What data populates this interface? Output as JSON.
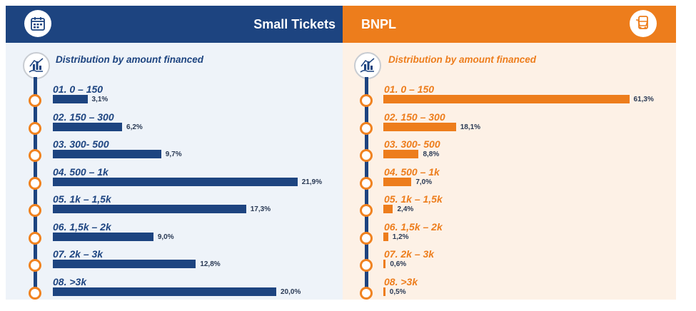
{
  "panels": {
    "left": {
      "header_title": "Small Tickets",
      "subtitle": "Distribution by amount financed",
      "header_icon": "calendar-icon",
      "subtitle_icon": "hand-chart-icon",
      "color": "#1d4480"
    },
    "right": {
      "header_title": "BNPL",
      "subtitle": "Distribution by amount financed",
      "header_icon": "shopping-cart-icon",
      "subtitle_icon": "hand-chart-icon",
      "color": "#ed7d1c"
    }
  },
  "chart_data": [
    {
      "type": "bar",
      "title": "Small Tickets",
      "subtitle": "Distribution by amount financed",
      "categories": [
        "01. 0 – 150",
        "02. 150 – 300",
        "03. 300- 500",
        "04. 500 – 1k",
        "05. 1k – 1,5k",
        "06. 1,5k – 2k",
        "07. 2k – 3k",
        "08. >3k"
      ],
      "values": [
        3.1,
        6.2,
        9.7,
        21.9,
        17.3,
        9.0,
        12.8,
        20.0
      ],
      "labels": [
        "3,1%",
        "6,2%",
        "9,7%",
        "21,9%",
        "17,3%",
        "9,0%",
        "12,8%",
        "20,0%"
      ]
    },
    {
      "type": "bar",
      "title": "BNPL",
      "subtitle": "Distribution by amount financed",
      "categories": [
        "01. 0 – 150",
        "02. 150 – 300",
        "03. 300- 500",
        "04. 500 – 1k",
        "05. 1k – 1,5k",
        "06. 1,5k – 2k",
        "07. 2k – 3k",
        "08. >3k"
      ],
      "values": [
        61.3,
        18.1,
        8.8,
        7.0,
        2.4,
        1.2,
        0.6,
        0.5
      ],
      "labels": [
        "61,3%",
        "18,1%",
        "8,8%",
        "7,0%",
        "2,4%",
        "1,2%",
        "0,6%",
        "0,5%"
      ]
    }
  ]
}
